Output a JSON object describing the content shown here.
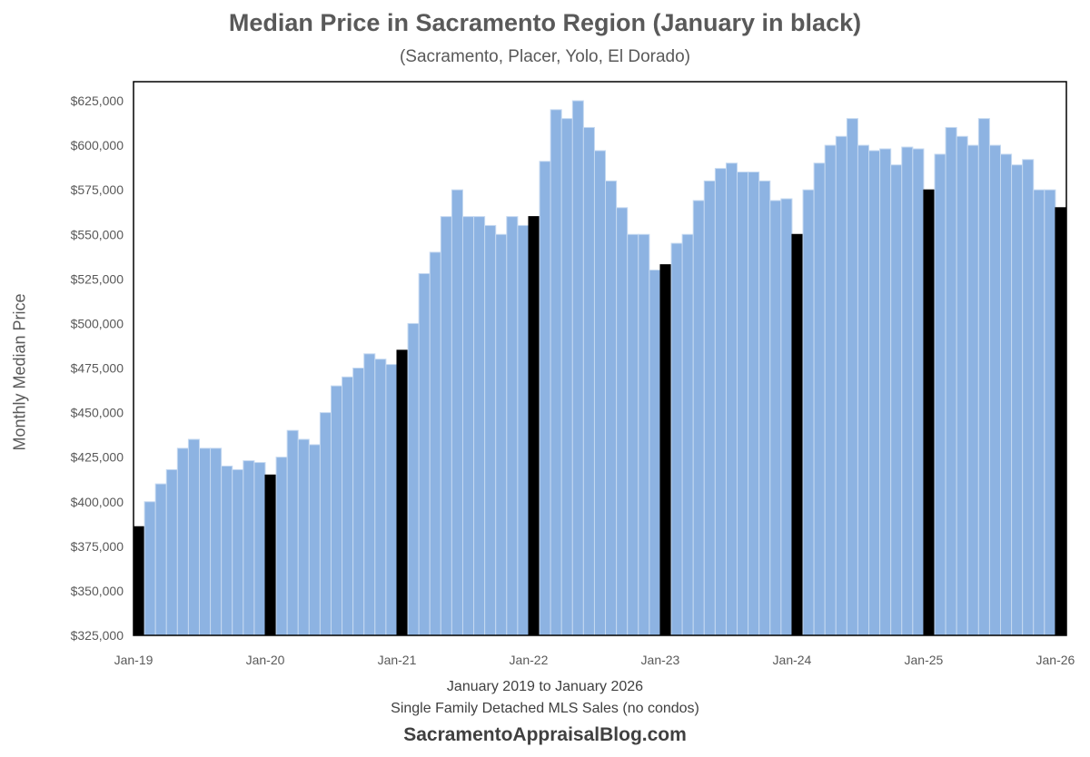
{
  "chart_data": {
    "type": "bar",
    "title": "Median Price in Sacramento Region (January in black)",
    "subtitle": "(Sacramento, Placer, Yolo, El Dorado)",
    "ylabel": "Monthly Median Price",
    "xlabel_lines": [
      "January 2019 to January 2026",
      "Single Family Detached MLS Sales (no condos)"
    ],
    "source": "SacramentoAppraisalBlog.com",
    "ylim": [
      325000,
      625000
    ],
    "y_ticks": [
      325000,
      350000,
      375000,
      400000,
      425000,
      450000,
      475000,
      500000,
      525000,
      550000,
      575000,
      600000,
      625000
    ],
    "y_tick_labels": [
      "$325,000",
      "$350,000",
      "$375,000",
      "$400,000",
      "$425,000",
      "$450,000",
      "$475,000",
      "$500,000",
      "$525,000",
      "$550,000",
      "$575,000",
      "$600,000",
      "$625,000"
    ],
    "x_tick_labels": [
      "Jan-19",
      "Jan-20",
      "Jan-21",
      "Jan-22",
      "Jan-23",
      "Jan-24",
      "Jan-25",
      "Jan-26"
    ],
    "start_month": "Jan-19",
    "colors": {
      "january": "#000000",
      "other": "#8db3e2"
    },
    "grid": false,
    "values": [
      386000,
      400000,
      410000,
      418000,
      430000,
      435000,
      430000,
      430000,
      420000,
      418000,
      423000,
      422000,
      415000,
      425000,
      440000,
      435000,
      432000,
      450000,
      465000,
      470000,
      475000,
      483000,
      480000,
      477000,
      485000,
      500000,
      528000,
      540000,
      560000,
      575000,
      560000,
      560000,
      555000,
      550000,
      560000,
      555000,
      560000,
      591000,
      620000,
      615000,
      625000,
      610000,
      597000,
      580000,
      565000,
      550000,
      550000,
      530000,
      533000,
      545000,
      550000,
      569000,
      580000,
      587000,
      590000,
      585000,
      585000,
      580000,
      569000,
      570000,
      550000,
      575000,
      590000,
      600000,
      605000,
      615000,
      600000,
      597000,
      598000,
      589000,
      599000,
      598000,
      575000,
      595000,
      610000,
      605000,
      600000,
      615000,
      600000,
      595000,
      589000,
      592000,
      575000,
      575000,
      565000
    ]
  }
}
